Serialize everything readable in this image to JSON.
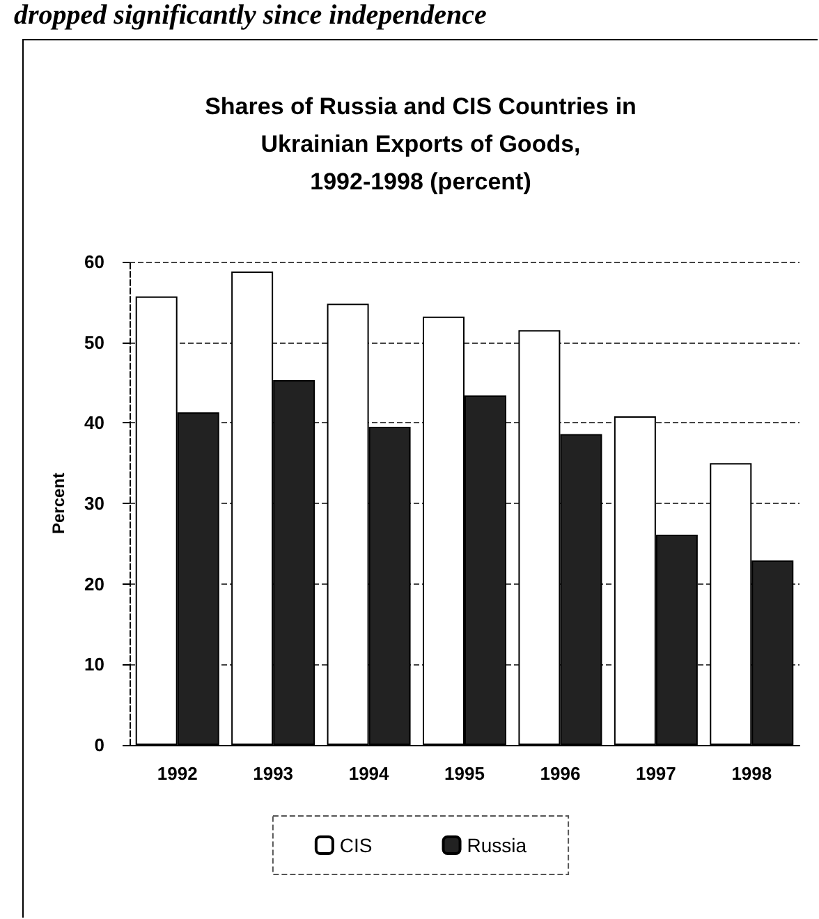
{
  "chart_data": {
    "type": "bar",
    "title": "Shares of Russia and CIS Countries in\nUkrainian Exports of Goods,\n1992-1998 (percent)",
    "ylabel": "Percent",
    "annotations": [
      "dropped significantly since independence"
    ],
    "categories": [
      "1992",
      "1993",
      "1994",
      "1995",
      "1996",
      "1997",
      "1998"
    ],
    "series": [
      {
        "name": "CIS",
        "color": "#ffffff",
        "values": [
          55.7,
          58.8,
          54.8,
          53.2,
          51.5,
          40.8,
          35.0
        ]
      },
      {
        "name": "Russia",
        "color": "#222222",
        "values": [
          41.3,
          45.3,
          39.5,
          43.4,
          38.6,
          26.1,
          22.9
        ]
      }
    ],
    "ylim": [
      0,
      60
    ],
    "yticks": [
      0,
      10,
      20,
      30,
      40,
      50,
      60
    ],
    "grid": "y",
    "legend": "bottom"
  }
}
